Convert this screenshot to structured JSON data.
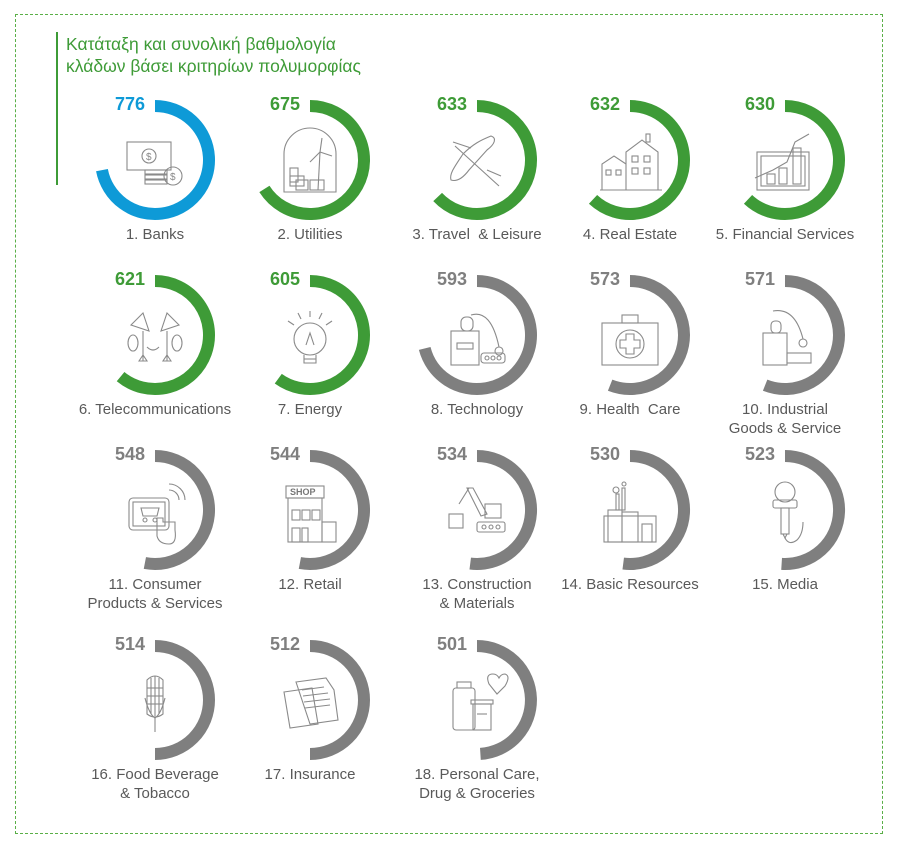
{
  "title": {
    "line1": "Κατάταξη και συνολική βαθμολογία",
    "line2": "κλάδων βάσει κριτηρίων πολυμορφίας"
  },
  "colors": {
    "blue": "#0e9ad7",
    "green": "#3e9b37",
    "gray": "#7f7f7f",
    "border": "#5aaf47",
    "label": "#595959"
  },
  "chart_data": {
    "type": "radial-bar",
    "title": "Κατάταξη και συνολική βαθμολογία κλάδων βάσει κριτηρίων πολυμορφίας",
    "items": [
      {
        "rank": 1,
        "name": "Banks",
        "label_lines": [
          "1. Banks"
        ],
        "value": 776,
        "fill": 0.72,
        "color": "blue",
        "icon": "money-icon"
      },
      {
        "rank": 2,
        "name": "Utilities",
        "label_lines": [
          "2. Utilities"
        ],
        "value": 675,
        "fill": 0.66,
        "color": "green",
        "icon": "wind-turbine-icon"
      },
      {
        "rank": 3,
        "name": "Travel & Leisure",
        "label_lines": [
          "3. Travel  & Leisure"
        ],
        "value": 633,
        "fill": 0.63,
        "color": "green",
        "icon": "airplane-icon"
      },
      {
        "rank": 4,
        "name": "Real Estate",
        "label_lines": [
          "4. Real Estate"
        ],
        "value": 632,
        "fill": 0.62,
        "color": "green",
        "icon": "house-icon"
      },
      {
        "rank": 5,
        "name": "Financial Services",
        "label_lines": [
          "5. Financial Services"
        ],
        "value": 630,
        "fill": 0.62,
        "color": "green",
        "icon": "chart-growth-icon"
      },
      {
        "rank": 6,
        "name": "Telecommunications",
        "label_lines": [
          "6. Telecommunications"
        ],
        "value": 621,
        "fill": 0.61,
        "color": "green",
        "icon": "satellite-dish-icon"
      },
      {
        "rank": 7,
        "name": "Energy",
        "label_lines": [
          "7. Energy"
        ],
        "value": 605,
        "fill": 0.6,
        "color": "green",
        "icon": "light-bulb-icon"
      },
      {
        "rank": 8,
        "name": "Technology",
        "label_lines": [
          "8. Technology"
        ],
        "value": 593,
        "fill": 0.71,
        "color": "gray",
        "icon": "robot-factory-icon"
      },
      {
        "rank": 9,
        "name": "Health Care",
        "label_lines": [
          "9. Health  Care"
        ],
        "value": 573,
        "fill": 0.56,
        "color": "gray",
        "icon": "first-aid-kit-icon"
      },
      {
        "rank": 10,
        "name": "Industrial Goods & Service",
        "label_lines": [
          "10. Industrial",
          "Goods & Service"
        ],
        "value": 571,
        "fill": 0.56,
        "color": "gray",
        "icon": "industrial-robot-icon"
      },
      {
        "rank": 11,
        "name": "Consumer Products & Services",
        "label_lines": [
          "11. Consumer",
          "Products & Services"
        ],
        "value": 548,
        "fill": 0.53,
        "color": "gray",
        "icon": "tablet-cart-icon"
      },
      {
        "rank": 12,
        "name": "Retail",
        "label_lines": [
          "12. Retail"
        ],
        "value": 544,
        "fill": 0.53,
        "color": "gray",
        "icon": "shop-icon"
      },
      {
        "rank": 13,
        "name": "Construction & Materials",
        "label_lines": [
          "13. Construction",
          "& Materials"
        ],
        "value": 534,
        "fill": 0.52,
        "color": "gray",
        "icon": "crane-icon"
      },
      {
        "rank": 14,
        "name": "Basic Resources",
        "label_lines": [
          "14. Basic Resources"
        ],
        "value": 530,
        "fill": 0.52,
        "color": "gray",
        "icon": "factory-icon"
      },
      {
        "rank": 15,
        "name": "Media",
        "label_lines": [
          "15. Media"
        ],
        "value": 523,
        "fill": 0.51,
        "color": "gray",
        "icon": "microphone-icon"
      },
      {
        "rank": 16,
        "name": "Food Beverage & Tobacco",
        "label_lines": [
          "16. Food Beverage",
          "& Tobacco"
        ],
        "value": 514,
        "fill": 0.5,
        "color": "gray",
        "icon": "corn-icon"
      },
      {
        "rank": 17,
        "name": "Insurance",
        "label_lines": [
          "17. Insurance"
        ],
        "value": 512,
        "fill": 0.5,
        "color": "gray",
        "icon": "documents-icon"
      },
      {
        "rank": 18,
        "name": "Personal Care, Drug & Groceries",
        "label_lines": [
          "18. Personal Care,",
          "Drug & Groceries"
        ],
        "value": 501,
        "fill": 0.49,
        "color": "gray",
        "icon": "jars-heart-icon"
      }
    ]
  }
}
